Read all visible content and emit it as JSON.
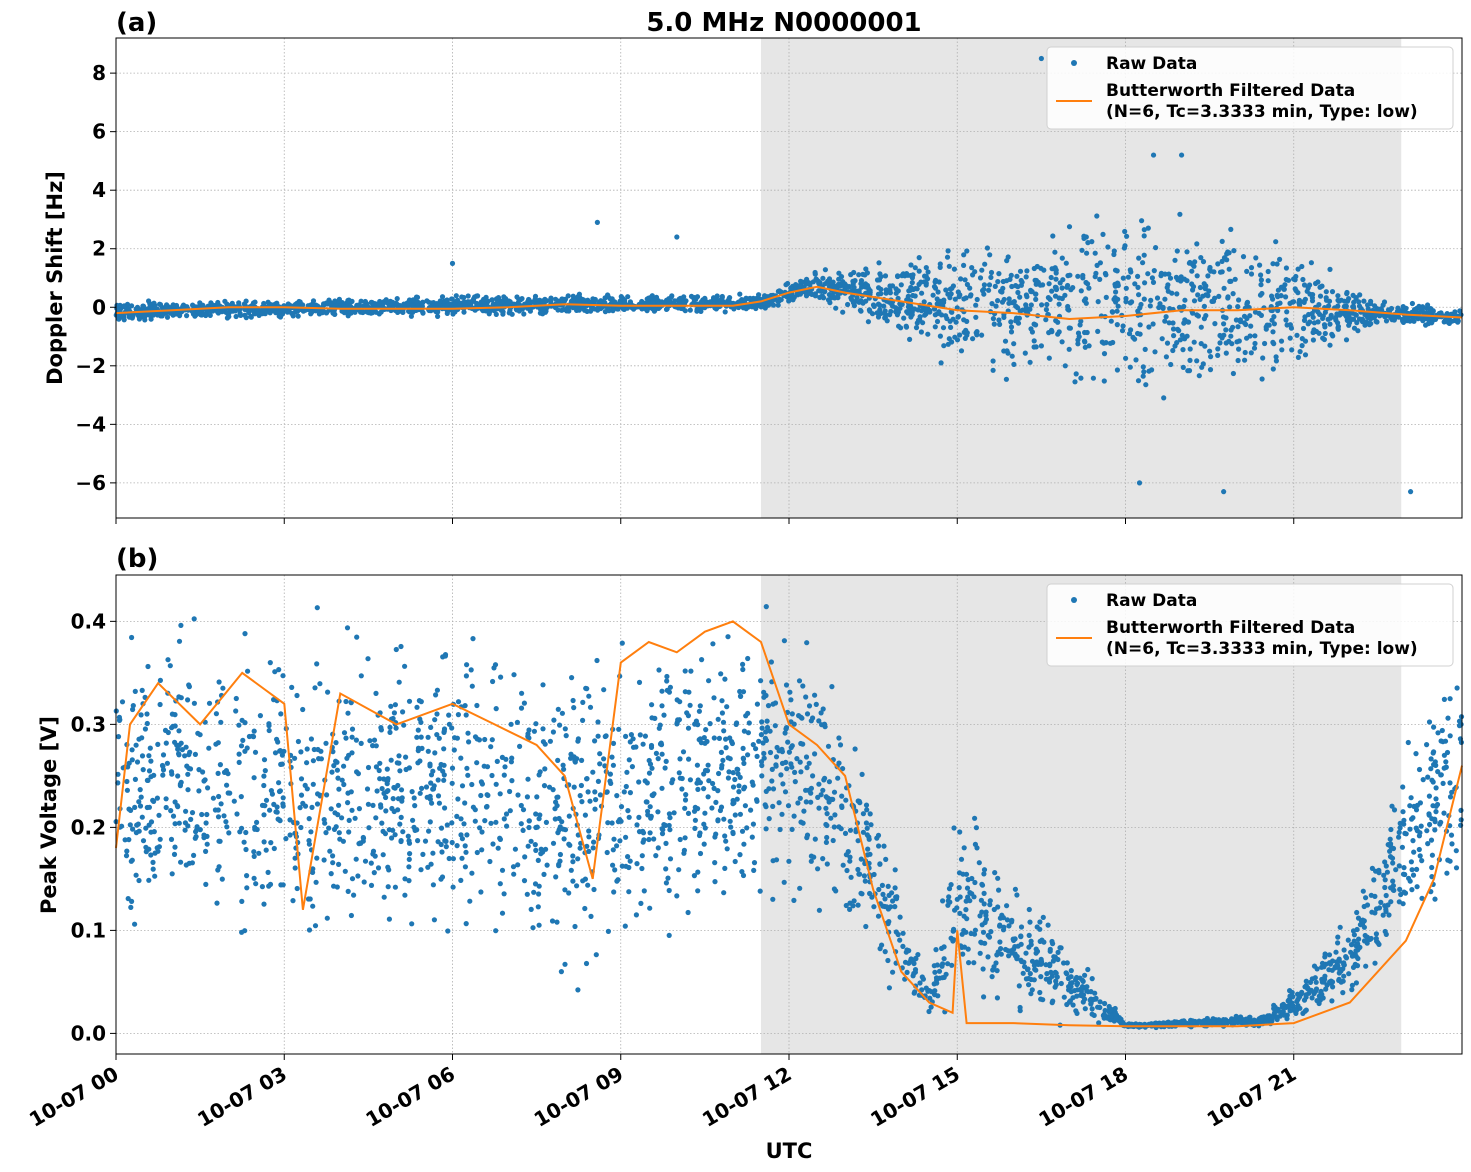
{
  "figure": {
    "title": "5.0 MHz N0000001",
    "xlabel": "UTC",
    "shade_color": "#e6e6e6",
    "raw_color": "#1f77b4",
    "filtered_color": "#ff7f0e"
  },
  "chart_data": [
    {
      "type": "scatter",
      "panel_label": "(a)",
      "title": "5.0 MHz N0000001",
      "ylabel": "Doppler Shift [Hz]",
      "xlabel": "",
      "x_range": [
        "10-07 00:00",
        "10-07 24:00"
      ],
      "ylim": [
        -7.2,
        9.2
      ],
      "yticks": [
        -6,
        -4,
        -2,
        0,
        2,
        4,
        6,
        8
      ],
      "ytick_labels": [
        "−6",
        "−4",
        "−2",
        "0",
        "2",
        "4",
        "6",
        "8"
      ],
      "grid": true,
      "legend_position": "top-right",
      "shaded_region": {
        "x_start": "10-07 11:30",
        "x_end": "10-07 22:55"
      },
      "series": [
        {
          "name": "Raw Data",
          "kind": "scatter",
          "approx_envelope": [
            {
              "x": "10-07 00:00",
              "low": -0.6,
              "high": 0.3
            },
            {
              "x": "10-07 03:00",
              "low": -0.4,
              "high": 0.3
            },
            {
              "x": "10-07 06:00",
              "low": -0.4,
              "high": 0.5
            },
            {
              "x": "10-07 09:00",
              "low": -0.3,
              "high": 0.5
            },
            {
              "x": "10-07 11:30",
              "low": -0.2,
              "high": 0.5
            },
            {
              "x": "10-07 12:30",
              "low": 0.2,
              "high": 1.3
            },
            {
              "x": "10-07 15:00",
              "low": -2.5,
              "high": 2.5
            },
            {
              "x": "10-07 18:30",
              "low": -4.0,
              "high": 4.5
            },
            {
              "x": "10-07 21:00",
              "low": -2.5,
              "high": 2.5
            },
            {
              "x": "10-07 22:30",
              "low": -0.8,
              "high": 0.4
            },
            {
              "x": "10-07 24:00",
              "low": -0.7,
              "high": 0.0
            }
          ],
          "notable_points": [
            {
              "x": "10-07 08:35",
              "y": 2.9
            },
            {
              "x": "10-07 10:00",
              "y": 2.4
            },
            {
              "x": "10-07 06:00",
              "y": 1.5
            },
            {
              "x": "10-07 16:30",
              "y": 8.5
            },
            {
              "x": "10-07 18:30",
              "y": 5.2
            },
            {
              "x": "10-07 19:00",
              "y": 5.2
            },
            {
              "x": "10-07 18:15",
              "y": -6.0
            },
            {
              "x": "10-07 19:45",
              "y": -6.3
            },
            {
              "x": "10-07 23:05",
              "y": -6.3
            }
          ]
        },
        {
          "name": "Butterworth Filtered Data\n(N=6, Tc=3.3333 min, Type: low)",
          "kind": "line",
          "x": [
            "10-07 00:00",
            "10-07 01:00",
            "10-07 02:00",
            "10-07 03:00",
            "10-07 04:00",
            "10-07 05:00",
            "10-07 06:00",
            "10-07 07:00",
            "10-07 08:00",
            "10-07 09:00",
            "10-07 10:00",
            "10-07 11:00",
            "10-07 11:30",
            "10-07 12:00",
            "10-07 12:30",
            "10-07 13:00",
            "10-07 14:00",
            "10-07 15:00",
            "10-07 16:00",
            "10-07 17:00",
            "10-07 18:00",
            "10-07 19:00",
            "10-07 20:00",
            "10-07 21:00",
            "10-07 22:00",
            "10-07 23:00",
            "10-07 24:00"
          ],
          "values": [
            -0.2,
            -0.1,
            0.0,
            0.0,
            -0.05,
            -0.05,
            -0.05,
            0.0,
            0.1,
            0.05,
            0.05,
            0.05,
            0.2,
            0.5,
            0.7,
            0.5,
            0.2,
            -0.1,
            -0.2,
            -0.4,
            -0.3,
            -0.1,
            -0.1,
            0.0,
            -0.1,
            -0.25,
            -0.35
          ]
        }
      ]
    },
    {
      "type": "scatter",
      "panel_label": "(b)",
      "title": "",
      "ylabel": "Peak Voltage [V]",
      "xlabel": "UTC",
      "x_range": [
        "10-07 00:00",
        "10-07 24:00"
      ],
      "ylim": [
        -0.02,
        0.445
      ],
      "yticks": [
        0.0,
        0.1,
        0.2,
        0.3,
        0.4
      ],
      "ytick_labels": [
        "0.0",
        "0.1",
        "0.2",
        "0.3",
        "0.4"
      ],
      "xtick_labels": [
        "10-07 00",
        "10-07 03",
        "10-07 06",
        "10-07 09",
        "10-07 12",
        "10-07 15",
        "10-07 18",
        "10-07 21"
      ],
      "grid": true,
      "legend_position": "top-right",
      "shaded_region": {
        "x_start": "10-07 11:30",
        "x_end": "10-07 22:55"
      },
      "series": [
        {
          "name": "Raw Data",
          "kind": "scatter",
          "approx_envelope": [
            {
              "x": "10-07 00:00",
              "low": 0.08,
              "high": 0.4
            },
            {
              "x": "10-07 01:00",
              "low": 0.08,
              "high": 0.42
            },
            {
              "x": "10-07 03:00",
              "low": 0.03,
              "high": 0.42
            },
            {
              "x": "10-07 05:00",
              "low": 0.05,
              "high": 0.42
            },
            {
              "x": "10-07 07:00",
              "low": 0.05,
              "high": 0.42
            },
            {
              "x": "10-07 08:00",
              "low": 0.02,
              "high": 0.4
            },
            {
              "x": "10-07 09:00",
              "low": 0.06,
              "high": 0.42
            },
            {
              "x": "10-07 11:00",
              "low": 0.1,
              "high": 0.42
            },
            {
              "x": "10-07 12:30",
              "low": 0.1,
              "high": 0.42
            },
            {
              "x": "10-07 13:30",
              "low": 0.05,
              "high": 0.25
            },
            {
              "x": "10-07 14:30",
              "low": 0.01,
              "high": 0.05
            },
            {
              "x": "10-07 15:00",
              "low": 0.005,
              "high": 0.26
            },
            {
              "x": "10-07 18:00",
              "low": 0.005,
              "high": 0.01
            },
            {
              "x": "10-07 20:30",
              "low": 0.005,
              "high": 0.02
            },
            {
              "x": "10-07 22:00",
              "low": 0.02,
              "high": 0.12
            },
            {
              "x": "10-07 23:00",
              "low": 0.08,
              "high": 0.3
            },
            {
              "x": "10-07 24:00",
              "low": 0.1,
              "high": 0.41
            }
          ]
        },
        {
          "name": "Butterworth Filtered Data\n(N=6, Tc=3.3333 min, Type: low)",
          "kind": "line",
          "x": [
            "10-07 00:00",
            "10-07 00:15",
            "10-07 00:45",
            "10-07 01:30",
            "10-07 02:15",
            "10-07 03:00",
            "10-07 03:20",
            "10-07 04:00",
            "10-07 05:00",
            "10-07 06:00",
            "10-07 06:45",
            "10-07 07:30",
            "10-07 08:00",
            "10-07 08:30",
            "10-07 09:00",
            "10-07 09:30",
            "10-07 10:00",
            "10-07 10:30",
            "10-07 11:00",
            "10-07 11:30",
            "10-07 12:00",
            "10-07 12:30",
            "10-07 13:00",
            "10-07 13:30",
            "10-07 14:00",
            "10-07 14:30",
            "10-07 14:55",
            "10-07 15:00",
            "10-07 15:10",
            "10-07 16:00",
            "10-07 17:00",
            "10-07 18:00",
            "10-07 19:00",
            "10-07 20:00",
            "10-07 21:00",
            "10-07 21:30",
            "10-07 22:00",
            "10-07 22:30",
            "10-07 23:00",
            "10-07 23:30",
            "10-07 24:00"
          ],
          "values": [
            0.18,
            0.3,
            0.34,
            0.3,
            0.35,
            0.32,
            0.12,
            0.33,
            0.3,
            0.32,
            0.3,
            0.28,
            0.25,
            0.15,
            0.36,
            0.38,
            0.37,
            0.39,
            0.4,
            0.38,
            0.3,
            0.28,
            0.25,
            0.14,
            0.06,
            0.03,
            0.02,
            0.1,
            0.01,
            0.01,
            0.008,
            0.007,
            0.007,
            0.007,
            0.01,
            0.02,
            0.03,
            0.06,
            0.09,
            0.15,
            0.26
          ]
        }
      ]
    }
  ]
}
